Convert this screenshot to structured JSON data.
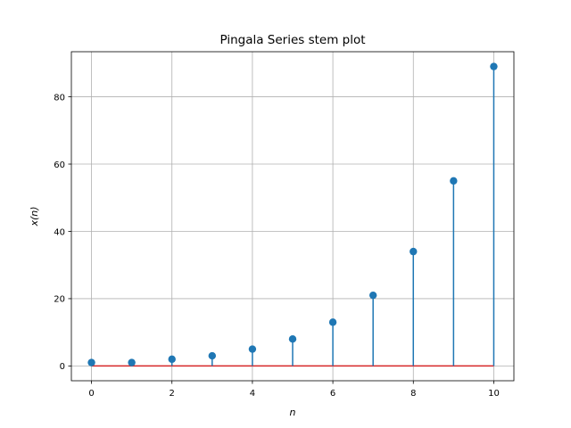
{
  "chart_data": {
    "type": "stem",
    "title": "Pingala Series stem plot",
    "xlabel": "n",
    "ylabel": "x(n)",
    "x": [
      0,
      1,
      2,
      3,
      4,
      5,
      6,
      7,
      8,
      9,
      10
    ],
    "values": [
      1,
      1,
      2,
      3,
      5,
      8,
      13,
      21,
      34,
      55,
      89
    ],
    "xlim": [
      -0.5,
      10.5
    ],
    "ylim": [
      -4.4,
      93.4
    ],
    "xticks": [
      0,
      2,
      4,
      6,
      8,
      10
    ],
    "yticks": [
      0,
      20,
      40,
      60,
      80
    ],
    "grid": true,
    "colors": {
      "stem": "#1f77b4",
      "marker": "#1f77b4",
      "baseline": "#d62728",
      "grid": "#b0b0b0",
      "axes": "#000000"
    }
  }
}
